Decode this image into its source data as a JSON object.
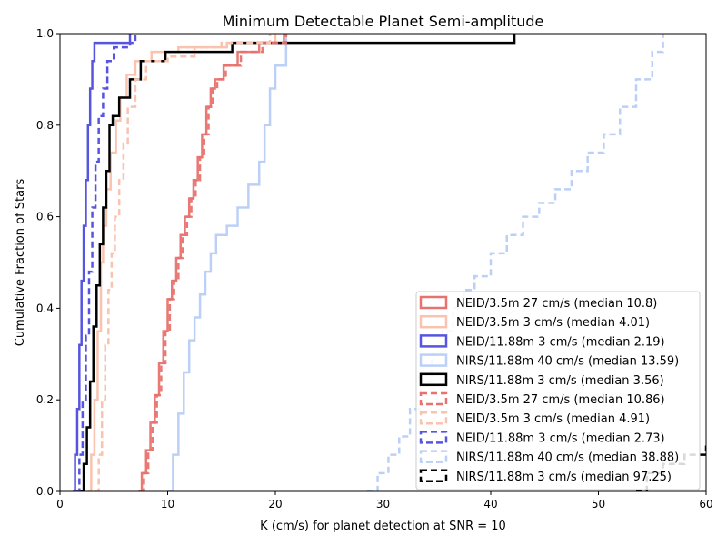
{
  "chart_data": {
    "type": "line",
    "title": "Minimum Detectable Planet Semi-amplitude",
    "xlabel": "K (cm/s) for planet detection at SNR = 10",
    "ylabel": "Cumulative Fraction of Stars",
    "xlim": [
      0,
      60
    ],
    "ylim": [
      0,
      1
    ],
    "x_ticks": [
      "0",
      "10",
      "20",
      "30",
      "40",
      "50",
      "60"
    ],
    "y_ticks": [
      "0.0",
      "0.2",
      "0.4",
      "0.6",
      "0.8",
      "1.0"
    ],
    "grid": false,
    "legend_position": "lower-right",
    "series": [
      {
        "name": "NEID/3.5m 27 cm/s (median 10.8)",
        "color": "#e8726e",
        "style": "solid",
        "x": [
          7.3,
          7.6,
          8.0,
          8.4,
          8.8,
          9.2,
          9.6,
          10.0,
          10.4,
          10.8,
          11.2,
          11.6,
          12.0,
          12.4,
          12.8,
          13.2,
          13.6,
          14.0,
          14.4,
          15.2,
          16.5,
          18.5,
          20.8
        ],
        "y": [
          0.0,
          0.04,
          0.09,
          0.15,
          0.21,
          0.28,
          0.35,
          0.42,
          0.46,
          0.51,
          0.56,
          0.6,
          0.64,
          0.68,
          0.73,
          0.78,
          0.84,
          0.88,
          0.9,
          0.93,
          0.96,
          0.98,
          1.0
        ]
      },
      {
        "name": "NEID/3.5m 3 cm/s (median 4.01)",
        "color": "#f9c3b0",
        "style": "solid",
        "x": [
          2.6,
          2.9,
          3.2,
          3.5,
          3.8,
          4.0,
          4.3,
          4.7,
          5.2,
          5.6,
          6.2,
          7.0,
          8.5,
          11.0,
          15.5,
          20.0
        ],
        "y": [
          0.0,
          0.08,
          0.2,
          0.35,
          0.5,
          0.58,
          0.66,
          0.74,
          0.81,
          0.86,
          0.91,
          0.94,
          0.96,
          0.97,
          0.98,
          1.0
        ]
      },
      {
        "name": "NEID/11.88m 3 cm/s (median 2.19)",
        "color": "#5755e0",
        "style": "solid",
        "x": [
          1.2,
          1.4,
          1.6,
          1.8,
          2.0,
          2.2,
          2.4,
          2.6,
          2.8,
          3.0,
          3.2,
          3.6,
          6.5
        ],
        "y": [
          0.0,
          0.08,
          0.18,
          0.32,
          0.46,
          0.58,
          0.68,
          0.8,
          0.88,
          0.94,
          0.98,
          0.98,
          1.0
        ]
      },
      {
        "name": "NIRS/11.88m 40 cm/s (median 13.59)",
        "color": "#bcd0f7",
        "style": "solid",
        "x": [
          10.0,
          10.5,
          11.0,
          11.5,
          12.0,
          12.5,
          13.0,
          13.5,
          14.0,
          14.5,
          15.5,
          16.5,
          17.5,
          18.5,
          19.0,
          19.5,
          20.0,
          21.0
        ],
        "y": [
          0.0,
          0.08,
          0.17,
          0.26,
          0.33,
          0.38,
          0.43,
          0.48,
          0.52,
          0.56,
          0.58,
          0.62,
          0.67,
          0.72,
          0.8,
          0.88,
          0.93,
          1.0
        ]
      },
      {
        "name": "NIRS/11.88m 3 cm/s (median 3.56)",
        "color": "#000000",
        "style": "solid",
        "x": [
          1.9,
          2.2,
          2.5,
          2.8,
          3.1,
          3.4,
          3.7,
          4.0,
          4.3,
          4.6,
          4.9,
          5.5,
          6.5,
          7.5,
          9.8,
          16.0,
          42.2
        ],
        "y": [
          0.0,
          0.06,
          0.14,
          0.24,
          0.36,
          0.45,
          0.54,
          0.62,
          0.7,
          0.8,
          0.82,
          0.86,
          0.9,
          0.94,
          0.96,
          0.98,
          1.0
        ]
      },
      {
        "name": "NEID/3.5m 27 cm/s (median 10.86)",
        "color": "#e8726e",
        "style": "dashed",
        "x": [
          7.5,
          7.8,
          8.2,
          8.6,
          9.0,
          9.4,
          9.8,
          10.2,
          10.6,
          11.0,
          11.4,
          11.8,
          12.2,
          12.6,
          13.0,
          13.4,
          13.8,
          14.2,
          14.6,
          15.4,
          16.8,
          18.8,
          21.0
        ],
        "y": [
          0.0,
          0.04,
          0.09,
          0.15,
          0.21,
          0.28,
          0.35,
          0.42,
          0.46,
          0.51,
          0.56,
          0.6,
          0.64,
          0.68,
          0.73,
          0.78,
          0.84,
          0.88,
          0.9,
          0.93,
          0.96,
          0.98,
          1.0
        ]
      },
      {
        "name": "NEID/3.5m 3 cm/s (median 4.91)",
        "color": "#f9c3b0",
        "style": "dashed",
        "x": [
          3.3,
          3.6,
          3.9,
          4.2,
          4.5,
          4.8,
          5.1,
          5.5,
          5.9,
          6.3,
          7.0,
          8.0,
          10.0,
          12.5,
          15.0,
          19.5
        ],
        "y": [
          0.0,
          0.08,
          0.2,
          0.32,
          0.44,
          0.52,
          0.6,
          0.68,
          0.76,
          0.84,
          0.9,
          0.94,
          0.95,
          0.97,
          0.98,
          1.0
        ]
      },
      {
        "name": "NEID/11.88m 3 cm/s (median 2.73)",
        "color": "#5755e0",
        "style": "dashed",
        "x": [
          1.5,
          1.8,
          2.1,
          2.4,
          2.7,
          3.0,
          3.3,
          3.6,
          4.0,
          4.4,
          5.0,
          6.5,
          7.0
        ],
        "y": [
          0.0,
          0.08,
          0.2,
          0.34,
          0.48,
          0.62,
          0.72,
          0.82,
          0.88,
          0.94,
          0.97,
          0.98,
          1.0
        ]
      },
      {
        "name": "NIRS/11.88m 40 cm/s (median 38.88)",
        "color": "#bcd0f7",
        "style": "dashed",
        "x": [
          28.5,
          29.5,
          30.5,
          31.5,
          32.5,
          33.5,
          34.5,
          35.5,
          36.5,
          37.5,
          38.5,
          40.0,
          41.5,
          43.0,
          44.5,
          46.0,
          47.5,
          49.0,
          50.5,
          52.0,
          53.5,
          55.0,
          56.0
        ],
        "y": [
          0.0,
          0.04,
          0.08,
          0.12,
          0.18,
          0.24,
          0.3,
          0.35,
          0.4,
          0.44,
          0.47,
          0.52,
          0.56,
          0.6,
          0.63,
          0.66,
          0.7,
          0.74,
          0.78,
          0.84,
          0.9,
          0.96,
          1.0
        ]
      },
      {
        "name": "NIRS/11.88m 3 cm/s (median 97.25)",
        "color": "#000000",
        "style": "dashed",
        "x": [
          53.5,
          54.5,
          56.0,
          58.0,
          60.0
        ],
        "y": [
          0.0,
          0.04,
          0.06,
          0.08,
          0.1
        ]
      }
    ]
  }
}
